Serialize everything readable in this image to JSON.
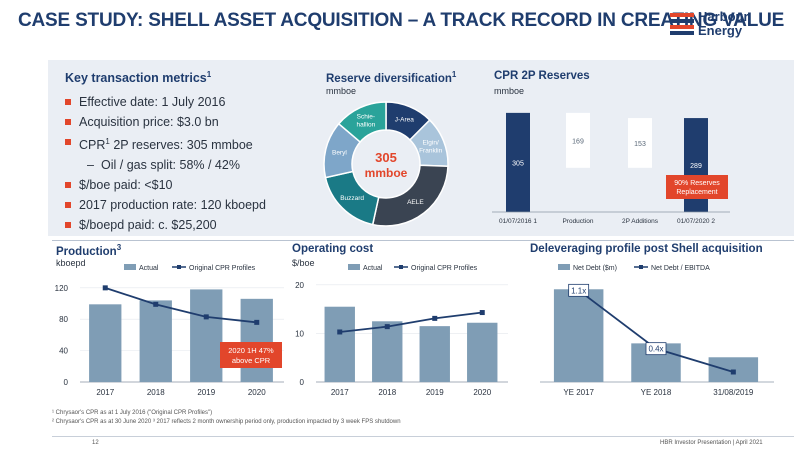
{
  "header": {
    "title": "CASE STUDY: SHELL ASSET ACQUISITION – A TRACK RECORD IN CREATING VALUE",
    "logo_line1": "Harbour",
    "logo_line2": "Energy",
    "logo_colors": [
      "#e2462b",
      "#1f3d6e",
      "#e2462b",
      "#1f3d6e"
    ]
  },
  "metrics": {
    "heading": "Key transaction metrics",
    "heading_sup": "1",
    "items": [
      {
        "text": "Effective date: 1 July 2016"
      },
      {
        "text": "Acquisition price: $3.0 bn"
      },
      {
        "prefix": "CPR",
        "sup": "1",
        "text": " 2P reserves: 305 mmboe"
      },
      {
        "sub": true,
        "dash": "–",
        "text": "Oil / gas split: 58% / 42%"
      },
      {
        "text": "$/boe paid: <$10"
      },
      {
        "text": "2017 production rate: 120 kboepd"
      },
      {
        "text": "$/boepd paid: c. $25,200"
      }
    ]
  },
  "reserve_div": {
    "title": "Reserve diversification",
    "title_sup": "1",
    "unit": "mmboe",
    "center_value": "305",
    "center_unit": "mmboe"
  },
  "cpr": {
    "title": "CPR 2P Reserves",
    "unit": "mmboe",
    "callout": "90% Reserves Replacement"
  },
  "production": {
    "title": "Production",
    "title_sup": "3",
    "unit": "kboepd",
    "callout": "2020 1H 47% above CPR"
  },
  "opcost": {
    "title": "Operating cost",
    "unit": "$/boe"
  },
  "deleverage": {
    "title": "Deleveraging profile post Shell acquisition"
  },
  "chart_data": [
    {
      "type": "pie",
      "title": "Reserve diversification",
      "labels": [
        "J-Area",
        "Elgin/ Franklin",
        "AELE",
        "Buzzard",
        "Beryl",
        "Schie- hallion"
      ],
      "values": [
        38,
        40,
        85,
        55,
        45,
        42
      ],
      "colors": [
        "#1f3d6e",
        "#a9c4db",
        "#3a4452",
        "#1a7a86",
        "#7ea6c9",
        "#2aa39a"
      ]
    },
    {
      "type": "bar",
      "title": "CPR 2P Reserves",
      "categories": [
        "01/07/2016 1",
        "Production",
        "2P Additions",
        "01/07/2020 2"
      ],
      "values": [
        305,
        169,
        153,
        289
      ],
      "ylim": [
        0,
        320
      ]
    },
    {
      "type": "bar",
      "title": "Production",
      "ylabel": "kboepd",
      "categories": [
        "2017",
        "2018",
        "2019",
        "2020"
      ],
      "series": [
        {
          "name": "Actual",
          "values": [
            99,
            104,
            118,
            106
          ],
          "color": "#7f9db5"
        },
        {
          "name": "Original CPR Profiles",
          "values": [
            120,
            99,
            83,
            76
          ],
          "color": "#1f3d6e"
        }
      ],
      "yticks": [
        0,
        40,
        80,
        120
      ],
      "ylim": [
        0,
        130
      ]
    },
    {
      "type": "bar",
      "title": "Operating cost",
      "ylabel": "$/boe",
      "categories": [
        "2017",
        "2018",
        "2019",
        "2020"
      ],
      "series": [
        {
          "name": "Actual",
          "values": [
            15.5,
            12.5,
            11.5,
            12.2
          ],
          "color": "#7f9db5"
        },
        {
          "name": "Original CPR Profiles",
          "values": [
            10.3,
            11.4,
            13.1,
            14.3
          ],
          "color": "#1f3d6e"
        }
      ],
      "yticks": [
        0,
        10,
        20
      ],
      "ylim": [
        0,
        21
      ]
    },
    {
      "type": "bar",
      "title": "Deleveraging profile post Shell acquisition",
      "categories": [
        "YE 2017",
        "YE 2018",
        "31/08/2019"
      ],
      "series": [
        {
          "name": "Net Debt ($m)",
          "values": [
            3000,
            1250,
            800
          ],
          "color": "#7f9db5"
        },
        {
          "name": "Net Debt / EBITDA",
          "values": [
            1.1,
            0.4,
            0.12
          ],
          "color": "#1f3d6e"
        }
      ],
      "labels": [
        "1.1x",
        "0.4x"
      ],
      "ylim": [
        0,
        3300
      ]
    }
  ],
  "footer": {
    "note1": "¹ Chrysaor's CPR as at 1 July 2016 (\"Original CPR Profiles\")",
    "note2": "² Chrysaor's CPR as at 30 June 2020  ³ 2017 reflects 2 month ownership period only, production impacted by 3 week FPS shutdown",
    "page": "12",
    "presentation": "HBR Investor Presentation  |  April 2021"
  }
}
